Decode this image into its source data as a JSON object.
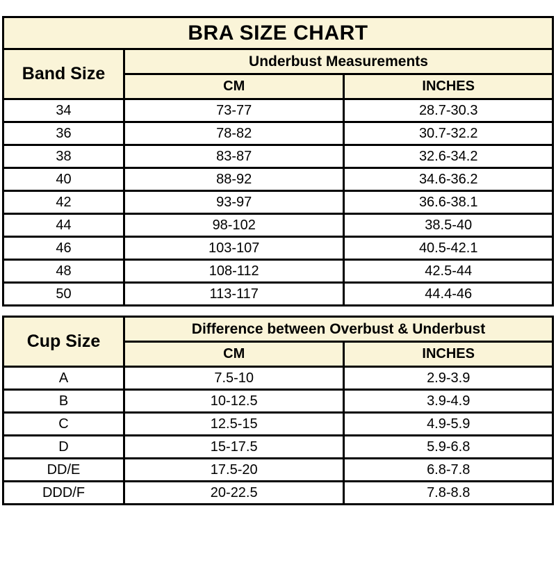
{
  "colors": {
    "header_bg": "#faf4d8",
    "border": "#000000",
    "row_bg": "#ffffff",
    "text": "#000000"
  },
  "chart_data": [
    {
      "type": "table",
      "title": "BRA SIZE CHART",
      "corner_header": "Band Size",
      "group_header": "Underbust Measurements",
      "columns": [
        "CM",
        "INCHES"
      ],
      "rows": [
        [
          "34",
          "73-77",
          "28.7-30.3"
        ],
        [
          "36",
          "78-82",
          "30.7-32.2"
        ],
        [
          "38",
          "83-87",
          "32.6-34.2"
        ],
        [
          "40",
          "88-92",
          "34.6-36.2"
        ],
        [
          "42",
          "93-97",
          "36.6-38.1"
        ],
        [
          "44",
          "98-102",
          "38.5-40"
        ],
        [
          "46",
          "103-107",
          "40.5-42.1"
        ],
        [
          "48",
          "108-112",
          "42.5-44"
        ],
        [
          "50",
          "113-117",
          "44.4-46"
        ]
      ]
    },
    {
      "type": "table",
      "title": "",
      "corner_header": "Cup Size",
      "group_header": "Difference between Overbust & Underbust",
      "columns": [
        "CM",
        "INCHES"
      ],
      "rows": [
        [
          "A",
          "7.5-10",
          "2.9-3.9"
        ],
        [
          "B",
          "10-12.5",
          "3.9-4.9"
        ],
        [
          "C",
          "12.5-15",
          "4.9-5.9"
        ],
        [
          "D",
          "15-17.5",
          "5.9-6.8"
        ],
        [
          "DD/E",
          "17.5-20",
          "6.8-7.8"
        ],
        [
          "DDD/F",
          "20-22.5",
          "7.8-8.8"
        ]
      ]
    }
  ]
}
